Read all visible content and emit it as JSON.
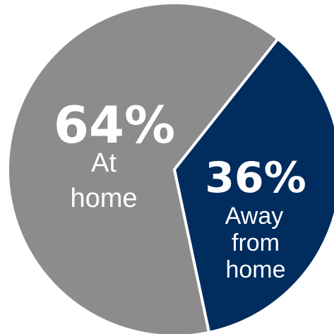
{
  "chart_data": {
    "type": "pie",
    "title": "",
    "slices": [
      {
        "label_lines": [
          "At",
          "home"
        ],
        "percent_label": "64%",
        "value": 64,
        "color": "#8c8c8c"
      },
      {
        "label_lines": [
          "Away",
          "from",
          "home"
        ],
        "percent_label": "36%",
        "value": 36,
        "color": "#002c5e"
      }
    ],
    "separator_color": "#ffffff"
  }
}
